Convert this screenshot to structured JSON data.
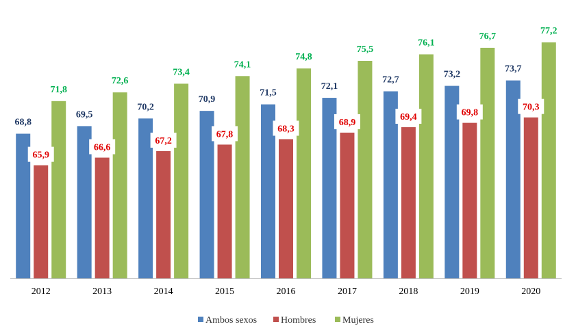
{
  "chart_data": {
    "type": "bar",
    "categories": [
      "2012",
      "2013",
      "2014",
      "2015",
      "2016",
      "2017",
      "2018",
      "2019",
      "2020"
    ],
    "series": [
      {
        "name": "Ambos sexos",
        "color": "#4F81BD",
        "label_color": "#1F3864",
        "labels": [
          "68,8",
          "69,5",
          "70,2",
          "70,9",
          "71,5",
          "72,1",
          "72,7",
          "73,2",
          "73,7"
        ],
        "values": [
          68.8,
          69.5,
          70.2,
          70.9,
          71.5,
          72.1,
          72.7,
          73.2,
          73.7
        ]
      },
      {
        "name": "Hombres",
        "color": "#C0504D",
        "label_color": "#E00000",
        "labels": [
          "65,9",
          "66,6",
          "67,2",
          "67,8",
          "68,3",
          "68,9",
          "69,4",
          "69,8",
          "70,3"
        ],
        "values": [
          65.9,
          66.6,
          67.2,
          67.8,
          68.3,
          68.9,
          69.4,
          69.8,
          70.3
        ]
      },
      {
        "name": "Mujeres",
        "color": "#9BBB59",
        "label_color": "#00B050",
        "labels": [
          "71,8",
          "72,6",
          "73,4",
          "74,1",
          "74,8",
          "75,5",
          "76,1",
          "76,7",
          "77,2"
        ],
        "values": [
          71.8,
          72.6,
          73.4,
          74.1,
          74.8,
          75.5,
          76.1,
          76.7,
          77.2
        ]
      }
    ],
    "ylim": [
      55.5,
      78.2
    ],
    "grid": false,
    "legend_position": "bottom"
  }
}
